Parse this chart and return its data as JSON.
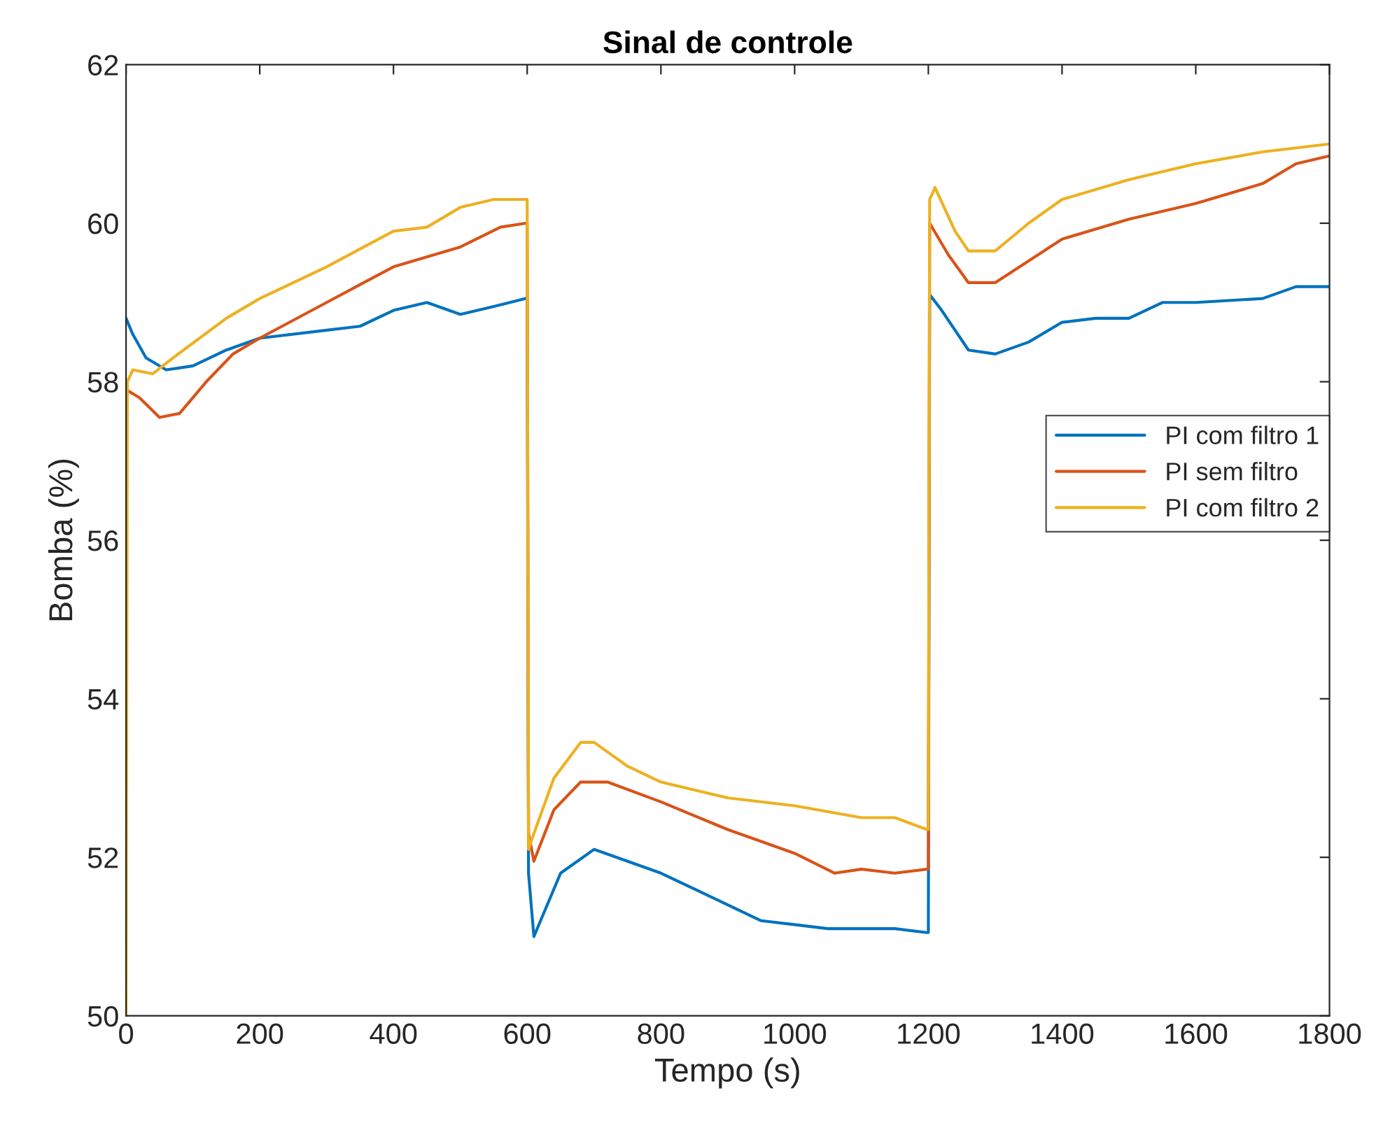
{
  "chart_data": {
    "type": "line",
    "title": "Sinal de controle",
    "xlabel": "Tempo (s)",
    "ylabel": "Bomba (%)",
    "xlim": [
      0,
      1800
    ],
    "ylim": [
      50,
      62
    ],
    "xticks": [
      0,
      200,
      400,
      600,
      800,
      1000,
      1200,
      1400,
      1600,
      1800
    ],
    "yticks": [
      50,
      52,
      54,
      56,
      58,
      60,
      62
    ],
    "grid": false,
    "legend": "right",
    "series": [
      {
        "name": "PI com filtro 1",
        "color": "#0072bd",
        "x": [
          0,
          10,
          30,
          60,
          100,
          150,
          200,
          300,
          350,
          400,
          450,
          500,
          550,
          598,
          600,
          602,
          610,
          620,
          650,
          700,
          750,
          800,
          850,
          900,
          950,
          1000,
          1050,
          1100,
          1150,
          1198,
          1200,
          1202,
          1220,
          1260,
          1300,
          1350,
          1400,
          1450,
          1500,
          1550,
          1600,
          1700,
          1750,
          1800
        ],
        "values": [
          58.8,
          58.6,
          58.3,
          58.15,
          58.2,
          58.4,
          58.55,
          58.65,
          58.7,
          58.9,
          59.0,
          58.85,
          58.95,
          59.05,
          59.05,
          51.8,
          51.0,
          51.2,
          51.8,
          52.1,
          51.95,
          51.8,
          51.6,
          51.4,
          51.2,
          51.15,
          51.1,
          51.1,
          51.1,
          51.05,
          51.05,
          59.1,
          58.9,
          58.4,
          58.35,
          58.5,
          58.75,
          58.8,
          58.8,
          59.0,
          59.0,
          59.05,
          59.2,
          59.2
        ]
      },
      {
        "name": "PI sem filtro",
        "color": "#d95319",
        "x": [
          0,
          20,
          50,
          80,
          120,
          160,
          200,
          300,
          400,
          500,
          560,
          598,
          600,
          602,
          610,
          640,
          680,
          720,
          800,
          900,
          1000,
          1060,
          1100,
          1150,
          1198,
          1200,
          1202,
          1230,
          1260,
          1300,
          1400,
          1500,
          1600,
          1700,
          1750,
          1800
        ],
        "values": [
          57.9,
          57.8,
          57.55,
          57.6,
          58.0,
          58.35,
          58.55,
          59.0,
          59.45,
          59.7,
          59.95,
          60.0,
          60.0,
          52.3,
          51.95,
          52.6,
          52.95,
          52.95,
          52.7,
          52.35,
          52.05,
          51.8,
          51.85,
          51.8,
          51.85,
          51.85,
          60.0,
          59.6,
          59.25,
          59.25,
          59.8,
          60.05,
          60.25,
          60.5,
          60.75,
          60.85
        ]
      },
      {
        "name": "PI com filtro 2",
        "color": "#edb120",
        "x": [
          0,
          2,
          10,
          40,
          70,
          150,
          200,
          300,
          400,
          450,
          500,
          550,
          598,
          600,
          602,
          610,
          640,
          680,
          700,
          750,
          800,
          900,
          1000,
          1100,
          1150,
          1198,
          1200,
          1202,
          1210,
          1240,
          1260,
          1300,
          1350,
          1400,
          1500,
          1600,
          1700,
          1800
        ],
        "values": [
          50,
          58.0,
          58.15,
          58.1,
          58.3,
          58.8,
          59.05,
          59.45,
          59.9,
          59.95,
          60.2,
          60.3,
          60.3,
          60.3,
          52.1,
          52.3,
          53.0,
          53.45,
          53.45,
          53.15,
          52.95,
          52.75,
          52.65,
          52.5,
          52.5,
          52.35,
          52.35,
          60.3,
          60.45,
          59.9,
          59.65,
          59.65,
          60.0,
          60.3,
          60.55,
          60.75,
          60.9,
          61.0
        ]
      }
    ]
  }
}
